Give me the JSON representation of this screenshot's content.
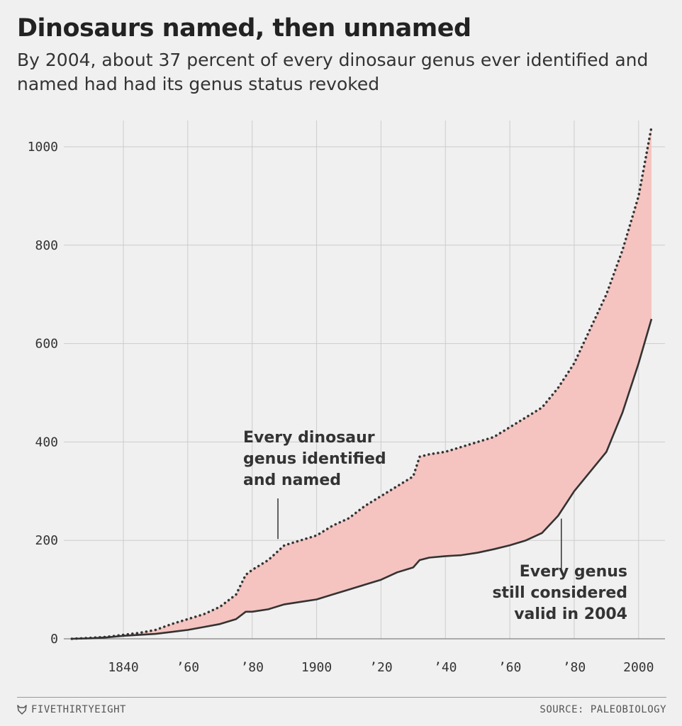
{
  "header": {
    "title": "Dinosaurs named, then unnamed",
    "subtitle": "By 2004, about 37 percent of every dinosaur genus ever identified and named had had its genus status revoked"
  },
  "footer": {
    "brand": "FIVETHIRTYEIGHT",
    "source": "SOURCE: PALEOBIOLOGY"
  },
  "colors": {
    "fill": "#f5c4c0",
    "line": "#333333",
    "grid": "#cccccc",
    "background": "#f0f0f0"
  },
  "chart_data": {
    "type": "area",
    "title": "Dinosaurs named, then unnamed",
    "xlabel": "",
    "ylabel": "",
    "xlim": [
      1824,
      2008
    ],
    "ylim": [
      0,
      1000
    ],
    "grid": true,
    "x_ticks": [
      {
        "value": 1840,
        "label": "1840"
      },
      {
        "value": 1860,
        "label": "’60"
      },
      {
        "value": 1880,
        "label": "’80"
      },
      {
        "value": 1900,
        "label": "1900"
      },
      {
        "value": 1920,
        "label": "’20"
      },
      {
        "value": 1940,
        "label": "’40"
      },
      {
        "value": 1960,
        "label": "’60"
      },
      {
        "value": 1980,
        "label": "’80"
      },
      {
        "value": 2000,
        "label": "2000"
      }
    ],
    "y_ticks": [
      {
        "value": 0,
        "label": "0"
      },
      {
        "value": 200,
        "label": "200"
      },
      {
        "value": 400,
        "label": "400"
      },
      {
        "value": 600,
        "label": "600"
      },
      {
        "value": 800,
        "label": "800"
      },
      {
        "value": 1000,
        "label": "1000"
      }
    ],
    "series": [
      {
        "name": "Every dinosaur genus identified and named",
        "style": "dotted",
        "x": [
          1824,
          1830,
          1835,
          1840,
          1845,
          1850,
          1855,
          1860,
          1865,
          1870,
          1875,
          1878,
          1880,
          1885,
          1890,
          1895,
          1900,
          1905,
          1910,
          1915,
          1920,
          1925,
          1930,
          1932,
          1935,
          1940,
          1945,
          1950,
          1955,
          1960,
          1965,
          1970,
          1975,
          1980,
          1985,
          1990,
          1995,
          2000,
          2004
        ],
        "y": [
          0,
          2,
          4,
          8,
          12,
          18,
          30,
          40,
          50,
          65,
          90,
          130,
          140,
          160,
          190,
          200,
          210,
          230,
          245,
          270,
          290,
          310,
          330,
          370,
          375,
          380,
          390,
          400,
          410,
          430,
          450,
          470,
          510,
          560,
          630,
          700,
          790,
          900,
          1040
        ]
      },
      {
        "name": "Every genus still considered valid in 2004",
        "style": "solid",
        "x": [
          1824,
          1830,
          1835,
          1840,
          1845,
          1850,
          1855,
          1860,
          1865,
          1870,
          1875,
          1878,
          1880,
          1885,
          1890,
          1895,
          1900,
          1905,
          1910,
          1915,
          1920,
          1925,
          1930,
          1932,
          1935,
          1940,
          1945,
          1950,
          1955,
          1960,
          1965,
          1970,
          1975,
          1980,
          1985,
          1990,
          1995,
          2000,
          2004
        ],
        "y": [
          0,
          1,
          3,
          6,
          8,
          10,
          14,
          18,
          24,
          30,
          40,
          55,
          55,
          60,
          70,
          75,
          80,
          90,
          100,
          110,
          120,
          135,
          145,
          160,
          165,
          168,
          170,
          175,
          182,
          190,
          200,
          215,
          250,
          300,
          340,
          380,
          460,
          560,
          650
        ]
      }
    ],
    "annotations": [
      {
        "lines": [
          "Every dinosaur",
          "genus identified",
          "and named"
        ],
        "x": 1888,
        "y": 197
      },
      {
        "lines": [
          "Every genus",
          "still considered",
          "valid in 2004"
        ],
        "x": 1976,
        "y": 250
      }
    ]
  }
}
